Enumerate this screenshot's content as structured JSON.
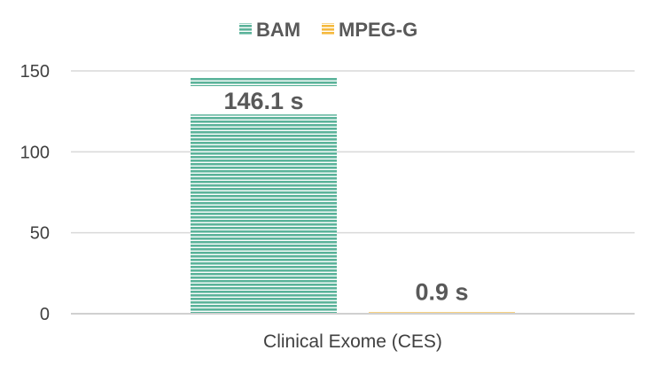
{
  "chart_data": {
    "type": "bar",
    "categories": [
      "Clinical Exome (CES)"
    ],
    "series": [
      {
        "name": "BAM",
        "values": [
          146.1
        ],
        "color": "#5BB39A",
        "data_label": "146.1 s"
      },
      {
        "name": "MPEG-G",
        "values": [
          0.9
        ],
        "color": "#F5B93E",
        "data_label": "0.9 s"
      }
    ],
    "title": "",
    "xlabel": "",
    "ylabel": "",
    "ylim": [
      0,
      150
    ],
    "yticks": [
      "0",
      "50",
      "100",
      "150"
    ],
    "grid": true,
    "legend": "top-center",
    "bar_pattern": "horizontal-stripes"
  }
}
